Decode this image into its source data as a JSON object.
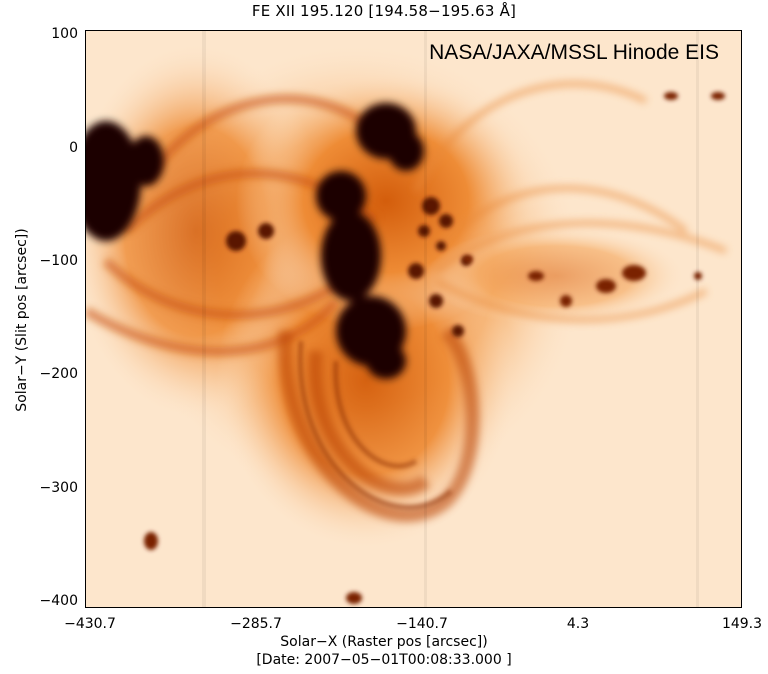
{
  "title": "FE XII 195.120 [194.58−195.63 Å]",
  "credit": "NASA/JAXA/MSSL Hinode EIS",
  "axes": {
    "ylabel": "Solar−Y (Slit pos [arcsec])",
    "xlabel": "Solar−X (Raster pos [arcsec])",
    "date": "[Date: 2007−05−01T00:08:33.000 ]",
    "yticks": [
      "100",
      "0",
      "−100",
      "−200",
      "−300",
      "−400"
    ],
    "xticks": [
      "−430.7",
      "−285.7",
      "−140.7",
      "4.3",
      "149.3"
    ]
  },
  "colors": {
    "background": "#fde6cc",
    "dark": "#1a0500",
    "mid": "#c04a00",
    "bright": "#f08a2a"
  }
}
